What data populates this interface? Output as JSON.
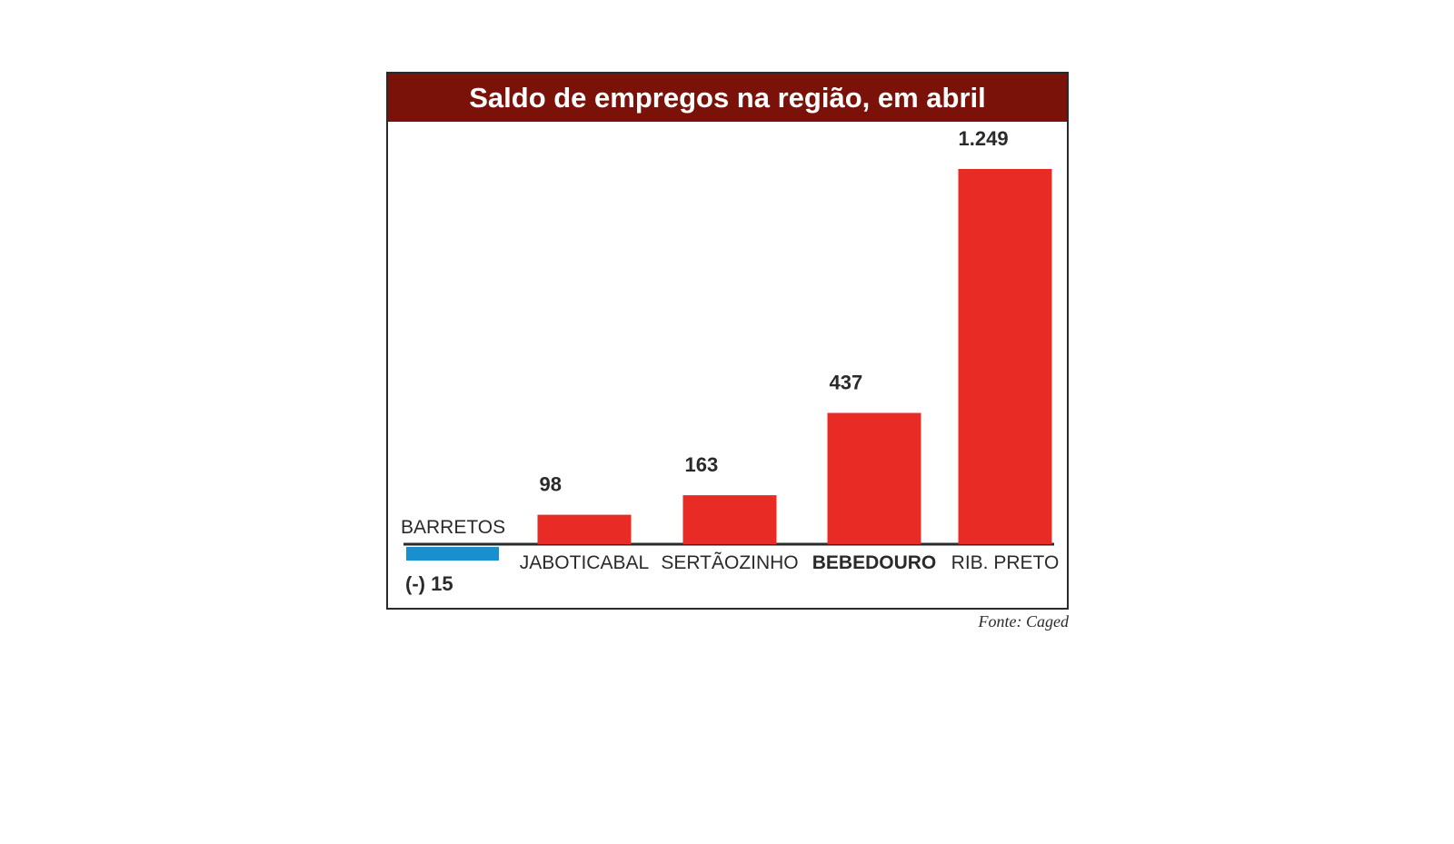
{
  "chart_data": {
    "type": "bar",
    "title": "Saldo de empregos na região, em abril",
    "categories": [
      "BARRETOS",
      "JABOTICABAL",
      "SERTÃOZINHO",
      "BEBEDOURO",
      "RIB. PRETO"
    ],
    "values": [
      -15,
      98,
      163,
      437,
      1249
    ],
    "value_labels": [
      "(-) 15",
      "98",
      "163",
      "437",
      "1.249"
    ],
    "highlight_category": "BEBEDOURO",
    "xlabel": "",
    "ylabel": "",
    "ylim": [
      -50,
      1249
    ],
    "grid": false,
    "legend": "none",
    "colors": {
      "positive": "#e92b25",
      "negative": "#1a8fd0",
      "header": "#7a1209",
      "text": "#2a2a2a"
    }
  },
  "source": "Fonte: Caged"
}
